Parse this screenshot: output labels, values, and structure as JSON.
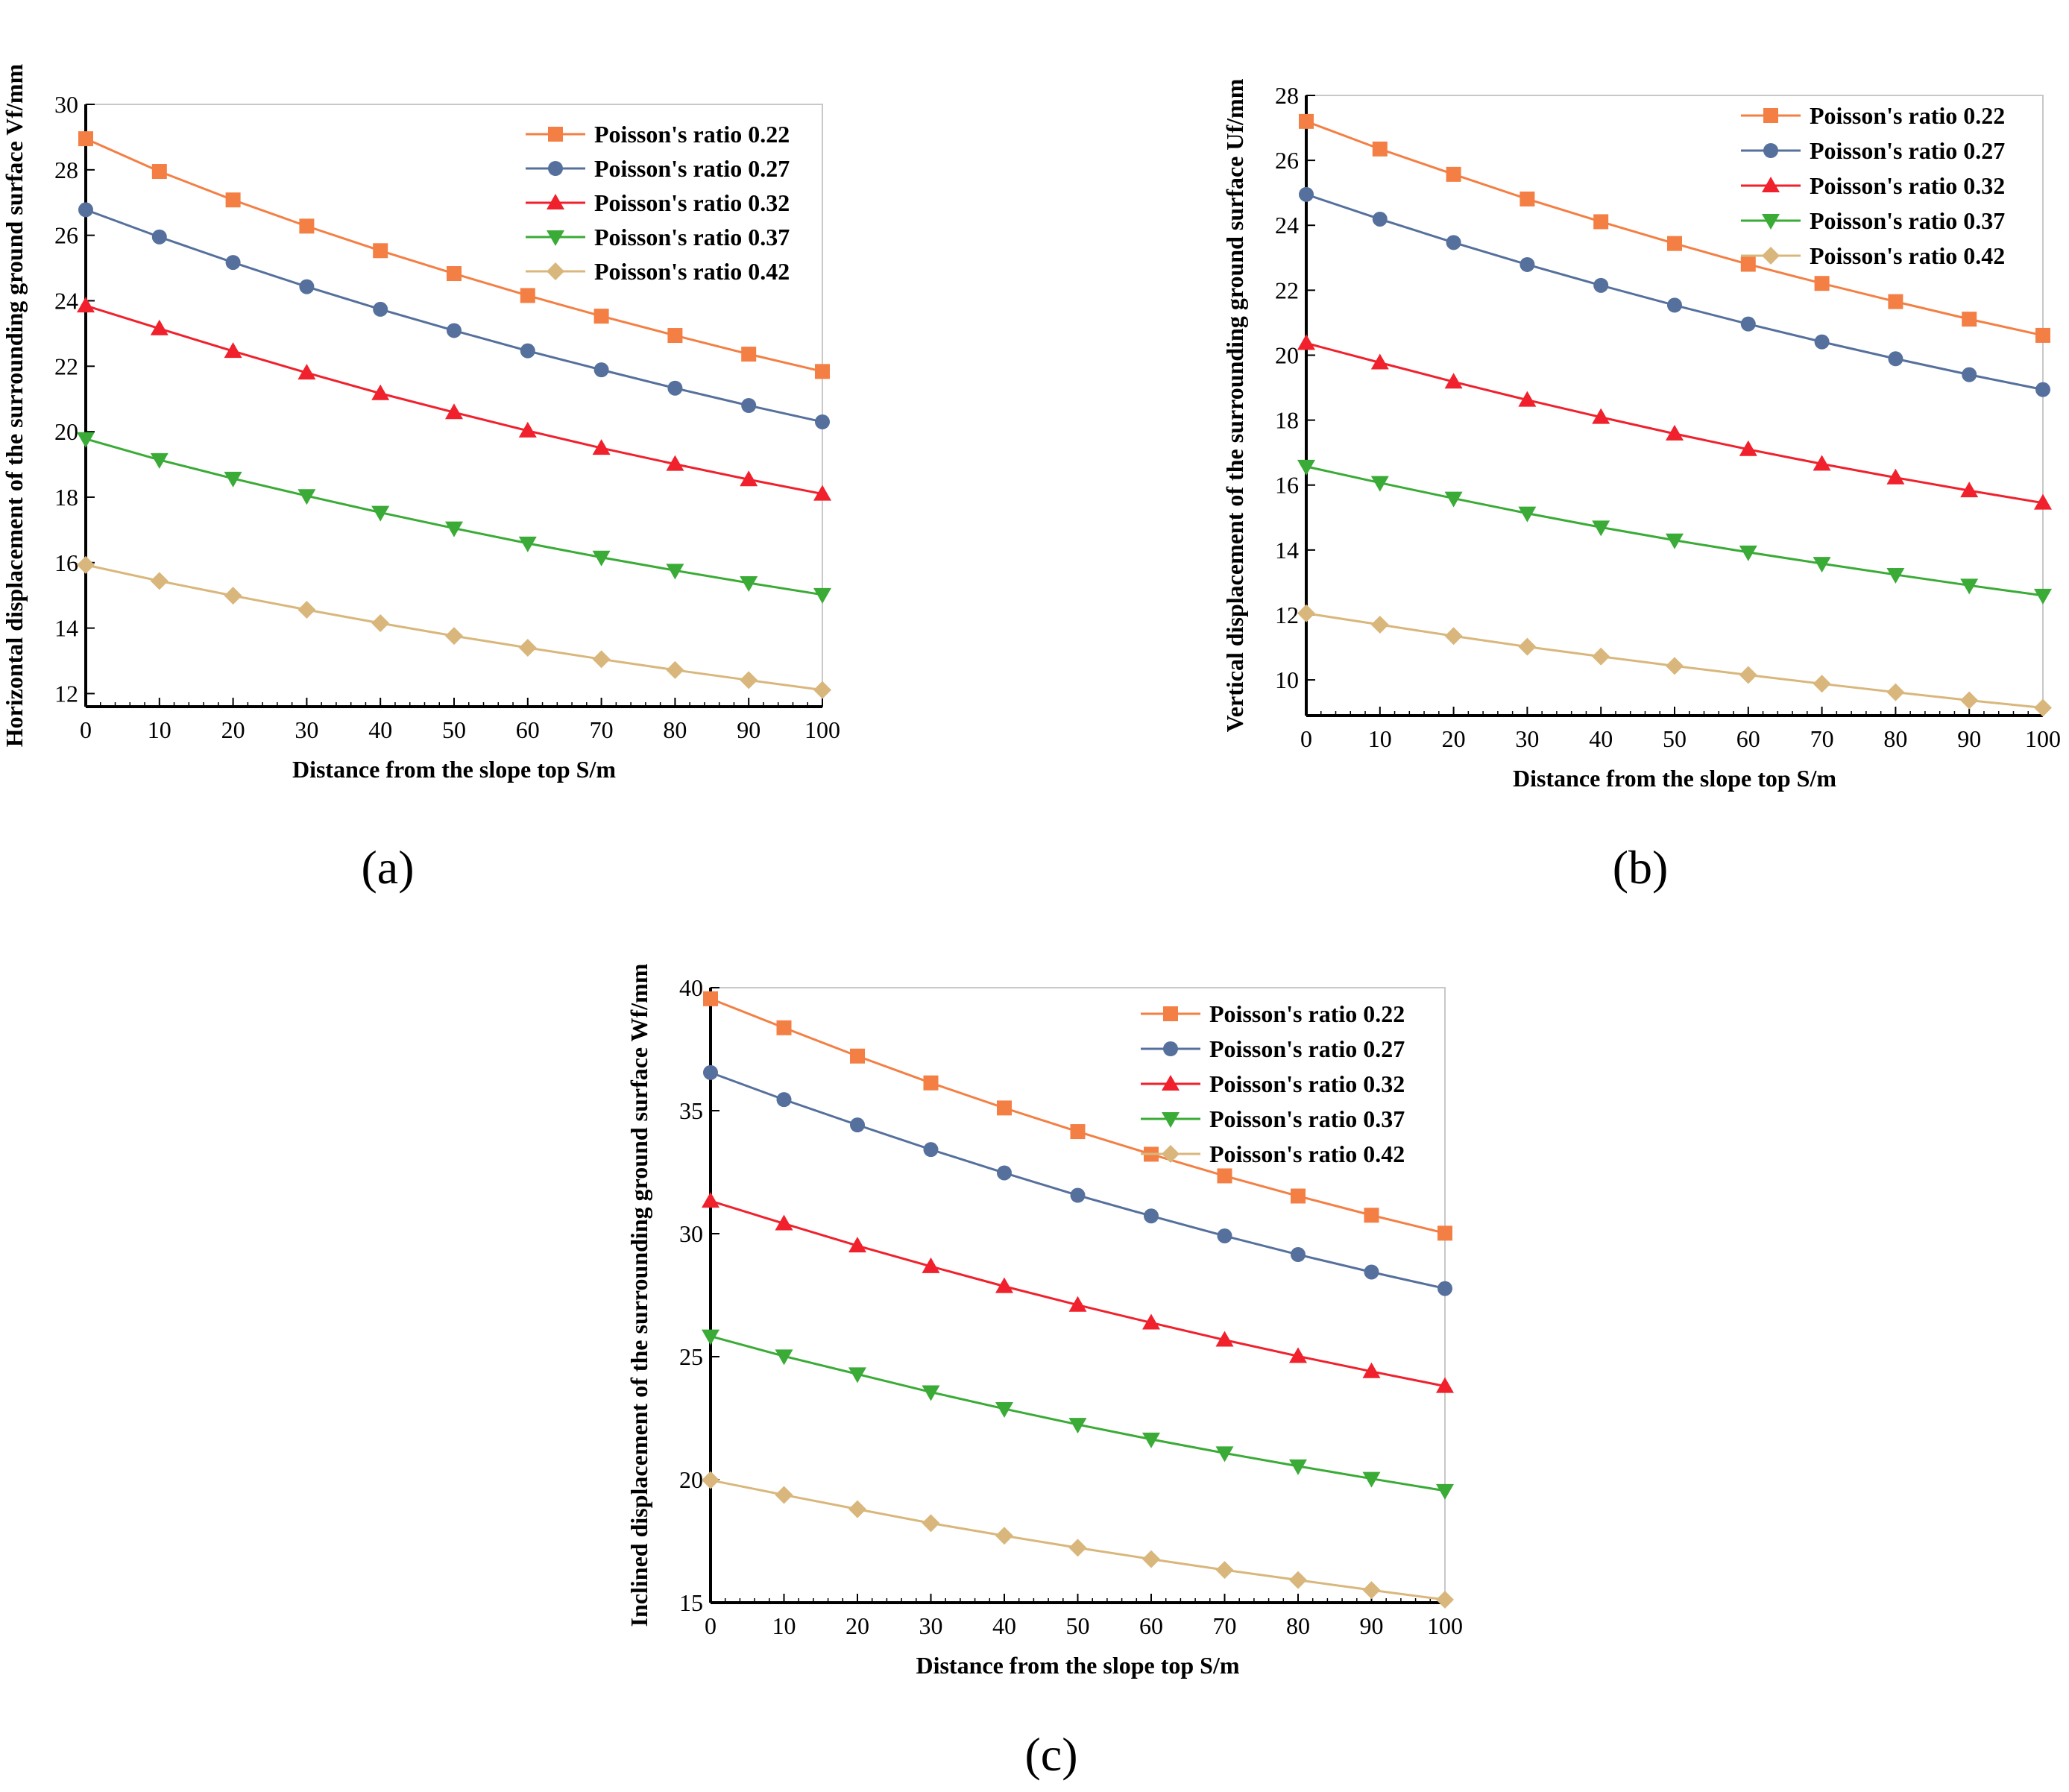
{
  "panel_labels": [
    "(a)",
    "(b)",
    "(c)"
  ],
  "series_colors": [
    "#f47f44",
    "#55709c",
    "#f0212c",
    "#3aab36",
    "#d9b77c"
  ],
  "series_markers": [
    "square",
    "circle",
    "triangle-up",
    "triangle-down",
    "diamond"
  ],
  "chart_data": [
    {
      "type": "line",
      "title": "",
      "xlabel": "Distance from the slope top S/m",
      "ylabel": "Horizontal displacement of the surrounding ground surface Vf/mm",
      "xlim": [
        0,
        100
      ],
      "ylim": [
        11.6,
        30
      ],
      "xticks": [
        0,
        10,
        20,
        30,
        40,
        50,
        60,
        70,
        80,
        90,
        100
      ],
      "yticks": [
        12,
        14,
        16,
        18,
        20,
        22,
        24,
        26,
        28,
        30
      ],
      "legend_position": "top-right",
      "x": [
        0,
        10,
        20,
        30,
        40,
        50,
        60,
        70,
        80,
        90,
        100
      ],
      "series": [
        {
          "name": "Poisson's ratio 0.22",
          "values": [
            28.95,
            27.95,
            27.08,
            26.28,
            25.53,
            24.83,
            24.16,
            23.53,
            22.94,
            22.37,
            21.84
          ]
        },
        {
          "name": "Poisson's ratio 0.27",
          "values": [
            26.78,
            25.95,
            25.17,
            24.43,
            23.74,
            23.09,
            22.47,
            21.89,
            21.33,
            20.8,
            20.3
          ]
        },
        {
          "name": "Poisson's ratio 0.32",
          "values": [
            23.85,
            23.15,
            22.46,
            21.8,
            21.17,
            20.59,
            20.03,
            19.5,
            19.01,
            18.54,
            18.1
          ]
        },
        {
          "name": "Poisson's ratio 0.37",
          "values": [
            19.78,
            19.14,
            18.57,
            18.04,
            17.53,
            17.05,
            16.59,
            16.16,
            15.76,
            15.38,
            15.02
          ]
        },
        {
          "name": "Poisson's ratio 0.42",
          "values": [
            15.93,
            15.44,
            14.99,
            14.56,
            14.15,
            13.76,
            13.4,
            13.05,
            12.72,
            12.41,
            12.11
          ]
        }
      ]
    },
    {
      "type": "line",
      "title": "",
      "xlabel": "Distance from the slope top S/m",
      "ylabel": "Vertical displacement of  the surrounding ground surface Uf/mm",
      "xlim": [
        0,
        100
      ],
      "ylim": [
        8.9,
        28
      ],
      "xticks": [
        0,
        10,
        20,
        30,
        40,
        50,
        60,
        70,
        80,
        90,
        100
      ],
      "yticks": [
        10,
        12,
        14,
        16,
        18,
        20,
        22,
        24,
        26,
        28
      ],
      "legend_position": "top-right",
      "x": [
        0,
        10,
        20,
        30,
        40,
        50,
        60,
        70,
        80,
        90,
        100
      ],
      "series": [
        {
          "name": "Poisson's ratio 0.22",
          "values": [
            27.2,
            26.35,
            25.57,
            24.81,
            24.11,
            23.44,
            22.8,
            22.21,
            21.65,
            21.11,
            20.61
          ]
        },
        {
          "name": "Poisson's ratio 0.27",
          "values": [
            24.95,
            24.19,
            23.47,
            22.79,
            22.15,
            21.54,
            20.96,
            20.41,
            19.89,
            19.4,
            18.94
          ]
        },
        {
          "name": "Poisson's ratio 0.32",
          "values": [
            20.37,
            19.77,
            19.18,
            18.62,
            18.09,
            17.58,
            17.1,
            16.65,
            16.23,
            15.83,
            15.45
          ]
        },
        {
          "name": "Poisson's ratio 0.37",
          "values": [
            16.57,
            16.07,
            15.59,
            15.13,
            14.7,
            14.3,
            13.93,
            13.58,
            13.24,
            12.91,
            12.6
          ]
        },
        {
          "name": "Poisson's ratio 0.42",
          "values": [
            12.05,
            11.7,
            11.35,
            11.02,
            10.72,
            10.43,
            10.15,
            9.88,
            9.62,
            9.37,
            9.14
          ]
        }
      ]
    },
    {
      "type": "line",
      "title": "",
      "xlabel": "Distance from the slope top S/m",
      "ylabel": "Inclined displacement of the surrounding ground surface Wf/mm",
      "xlim": [
        0,
        100
      ],
      "ylim": [
        15,
        40
      ],
      "xticks": [
        0,
        10,
        20,
        30,
        40,
        50,
        60,
        70,
        80,
        90,
        100
      ],
      "yticks": [
        15,
        20,
        25,
        30,
        35,
        40
      ],
      "legend_position": "top-right",
      "x": [
        0,
        10,
        20,
        30,
        40,
        50,
        60,
        70,
        80,
        90,
        100
      ],
      "series": [
        {
          "name": "Poisson's ratio 0.22",
          "values": [
            39.55,
            38.37,
            37.22,
            36.13,
            35.11,
            34.15,
            33.23,
            32.35,
            31.53,
            30.75,
            30.02
          ]
        },
        {
          "name": "Poisson's ratio 0.27",
          "values": [
            36.55,
            35.45,
            34.42,
            33.42,
            32.47,
            31.56,
            30.72,
            29.91,
            29.15,
            28.44,
            27.77
          ]
        },
        {
          "name": "Poisson's ratio 0.32",
          "values": [
            31.33,
            30.41,
            29.51,
            28.67,
            27.86,
            27.1,
            26.38,
            25.68,
            25.02,
            24.4,
            23.8
          ]
        },
        {
          "name": "Poisson's ratio 0.37",
          "values": [
            25.83,
            25.02,
            24.29,
            23.56,
            22.88,
            22.24,
            21.64,
            21.08,
            20.55,
            20.04,
            19.55
          ]
        },
        {
          "name": "Poisson's ratio 0.42",
          "values": [
            19.98,
            19.38,
            18.8,
            18.23,
            17.72,
            17.23,
            16.77,
            16.33,
            15.92,
            15.51,
            15.12
          ]
        }
      ]
    }
  ]
}
